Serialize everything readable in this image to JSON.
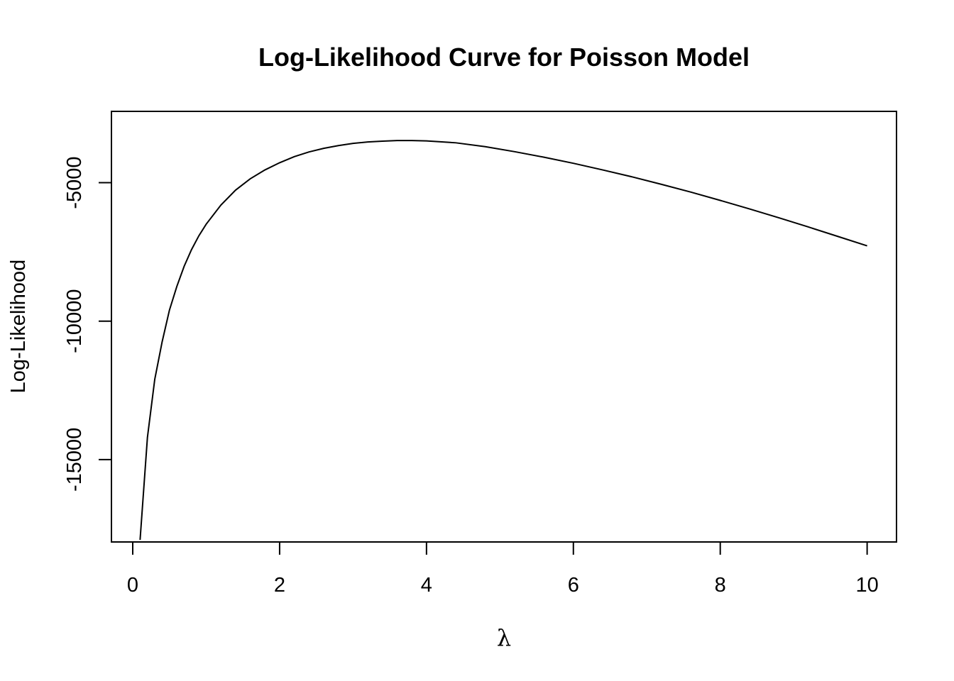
{
  "chart_data": {
    "type": "line",
    "title": "Log-Likelihood Curve for Poisson Model",
    "xlabel": "λ",
    "ylabel": "Log-Likelihood",
    "xlim": [
      0,
      10
    ],
    "ylim": [
      -17975,
      -2425
    ],
    "x_ticks": [
      0,
      2,
      4,
      6,
      8,
      10
    ],
    "x_tick_labels": [
      "0",
      "2",
      "4",
      "6",
      "8",
      "10"
    ],
    "y_ticks": [
      -15000,
      -10000,
      -5000
    ],
    "y_tick_labels": [
      "-15000",
      "-10000",
      "-5000"
    ],
    "grid": false,
    "legend": "none",
    "series": [
      {
        "x": [
          0.1,
          0.2,
          0.3,
          0.4,
          0.5,
          0.6,
          0.7,
          0.8,
          0.9,
          1.0,
          1.2,
          1.4,
          1.6,
          1.8,
          2.0,
          2.2,
          2.4,
          2.6,
          2.8,
          3.0,
          3.2,
          3.4,
          3.6,
          3.8,
          4.0,
          4.4,
          4.8,
          5.2,
          5.6,
          6.0,
          6.4,
          6.8,
          7.2,
          7.6,
          8.0,
          8.4,
          8.8,
          9.2,
          9.6,
          10.0
        ],
        "y": [
          -17900,
          -14200,
          -12100,
          -10750,
          -9600,
          -8750,
          -8020,
          -7420,
          -6920,
          -6500,
          -5810,
          -5270,
          -4860,
          -4540,
          -4280,
          -4060,
          -3890,
          -3760,
          -3660,
          -3580,
          -3530,
          -3500,
          -3480,
          -3480,
          -3490,
          -3560,
          -3700,
          -3880,
          -4080,
          -4300,
          -4540,
          -4790,
          -5060,
          -5340,
          -5640,
          -5950,
          -6270,
          -6600,
          -6940,
          -7280
        ]
      }
    ]
  }
}
